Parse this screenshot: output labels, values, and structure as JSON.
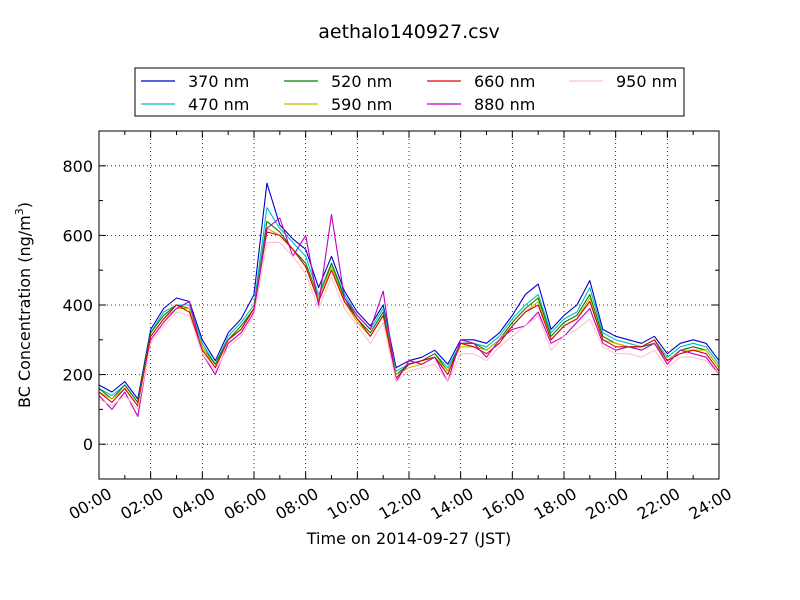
{
  "chart_data": {
    "type": "line",
    "title": "aethalo140927.csv",
    "xlabel": "Time on 2014-09-27 (JST)",
    "ylabel_main": "BC Concentration (ng/m",
    "ylabel_sup": "3",
    "ylabel_close": ")",
    "xlim": [
      0,
      24
    ],
    "ylim": [
      -100,
      900
    ],
    "x_ticks": [
      "00:00",
      "02:00",
      "04:00",
      "06:00",
      "08:00",
      "10:00",
      "12:00",
      "14:00",
      "16:00",
      "18:00",
      "20:00",
      "22:00",
      "24:00"
    ],
    "y_ticks": [
      0,
      200,
      400,
      600,
      800
    ],
    "grid": true,
    "legend_position": "top",
    "x_hours": [
      0.0,
      0.5,
      1.0,
      1.5,
      2.0,
      2.5,
      3.0,
      3.5,
      4.0,
      4.5,
      5.0,
      5.5,
      6.0,
      6.5,
      7.0,
      7.5,
      8.0,
      8.5,
      9.0,
      9.5,
      10.0,
      10.5,
      11.0,
      11.5,
      12.0,
      12.5,
      13.0,
      13.5,
      14.0,
      14.5,
      15.0,
      15.5,
      16.0,
      16.5,
      17.0,
      17.5,
      18.0,
      18.5,
      19.0,
      19.5,
      20.0,
      20.5,
      21.0,
      21.5,
      22.0,
      22.5,
      23.0,
      23.5,
      24.0
    ],
    "series": [
      {
        "name": "370 nm",
        "color": "#0000cc",
        "values": [
          170,
          150,
          180,
          130,
          330,
          390,
          420,
          410,
          300,
          240,
          320,
          360,
          430,
          750,
          630,
          590,
          560,
          450,
          540,
          440,
          380,
          340,
          400,
          220,
          240,
          250,
          270,
          230,
          300,
          300,
          290,
          320,
          370,
          430,
          460,
          330,
          370,
          400,
          470,
          330,
          310,
          300,
          290,
          310,
          260,
          290,
          300,
          290,
          240
        ]
      },
      {
        "name": "470 nm",
        "color": "#00bfbf",
        "values": [
          160,
          140,
          170,
          120,
          320,
          380,
          400,
          400,
          290,
          230,
          310,
          350,
          400,
          680,
          620,
          580,
          540,
          430,
          520,
          430,
          370,
          330,
          390,
          210,
          230,
          240,
          260,
          220,
          290,
          290,
          280,
          310,
          360,
          400,
          430,
          320,
          360,
          380,
          450,
          320,
          300,
          290,
          280,
          300,
          250,
          280,
          290,
          280,
          230
        ]
      },
      {
        "name": "520 nm",
        "color": "#008000",
        "values": [
          160,
          130,
          170,
          120,
          320,
          370,
          400,
          390,
          280,
          230,
          300,
          340,
          390,
          640,
          610,
          560,
          520,
          420,
          520,
          420,
          360,
          320,
          380,
          200,
          230,
          240,
          260,
          210,
          290,
          290,
          270,
          300,
          350,
          390,
          420,
          310,
          350,
          370,
          430,
          310,
          290,
          280,
          280,
          290,
          240,
          270,
          280,
          270,
          220
        ]
      },
      {
        "name": "590 nm",
        "color": "#bfbf00",
        "values": [
          150,
          130,
          160,
          110,
          310,
          360,
          390,
          390,
          280,
          220,
          300,
          330,
          390,
          620,
          600,
          560,
          510,
          420,
          510,
          410,
          350,
          310,
          370,
          200,
          220,
          230,
          250,
          210,
          280,
          280,
          270,
          300,
          340,
          380,
          410,
          300,
          340,
          360,
          420,
          300,
          290,
          280,
          270,
          290,
          240,
          270,
          270,
          270,
          220
        ]
      },
      {
        "name": "660 nm",
        "color": "#e00000",
        "values": [
          150,
          120,
          160,
          110,
          310,
          360,
          400,
          380,
          270,
          220,
          300,
          330,
          390,
          610,
          600,
          560,
          510,
          410,
          500,
          410,
          360,
          310,
          370,
          190,
          230,
          240,
          250,
          200,
          290,
          280,
          260,
          290,
          340,
          380,
          400,
          300,
          340,
          360,
          410,
          300,
          280,
          280,
          280,
          300,
          240,
          260,
          270,
          260,
          210
        ]
      },
      {
        "name": "880 nm",
        "color": "#bf00bf",
        "values": [
          140,
          100,
          150,
          80,
          300,
          350,
          390,
          410,
          260,
          200,
          290,
          320,
          380,
          620,
          650,
          540,
          600,
          400,
          660,
          420,
          370,
          330,
          440,
          180,
          240,
          230,
          250,
          180,
          300,
          290,
          250,
          300,
          330,
          340,
          380,
          290,
          310,
          350,
          390,
          290,
          270,
          280,
          270,
          290,
          230,
          270,
          260,
          250,
          200
        ]
      },
      {
        "name": "950 nm",
        "color": "#ffc0cb",
        "values": [
          130,
          110,
          140,
          100,
          290,
          340,
          380,
          370,
          260,
          210,
          280,
          310,
          370,
          580,
          580,
          540,
          490,
          390,
          480,
          390,
          340,
          290,
          350,
          180,
          210,
          220,
          230,
          180,
          260,
          260,
          240,
          280,
          310,
          340,
          370,
          270,
          310,
          330,
          360,
          280,
          260,
          260,
          250,
          270,
          220,
          250,
          250,
          240,
          200
        ]
      }
    ]
  }
}
